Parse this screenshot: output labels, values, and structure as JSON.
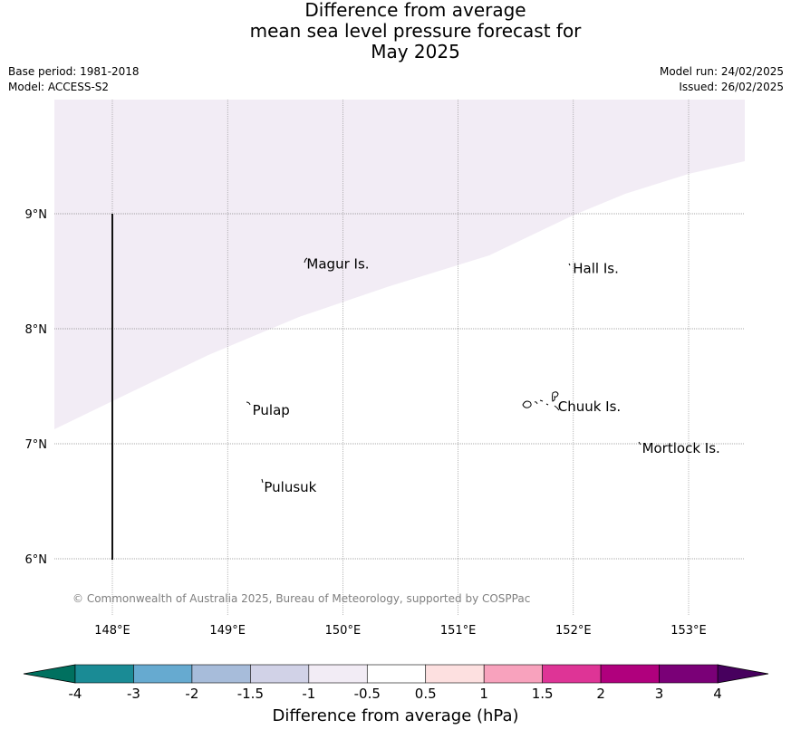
{
  "title": {
    "line1": "Difference from average",
    "line2": "mean sea level pressure forecast for",
    "line3": "May 2025"
  },
  "info": {
    "base_period": "Base period: 1981-2018",
    "model": "Model: ACCESS-S2",
    "model_run": "Model run: 24/02/2025",
    "issued": "Issued: 26/02/2025"
  },
  "map": {
    "lon_range": [
      147.5,
      153.5
    ],
    "lat_range": [
      5.5,
      10.0
    ],
    "lon_ticks": [
      "148°E",
      "149°E",
      "150°E",
      "151°E",
      "152°E",
      "153°E"
    ],
    "lat_ticks": [
      "6°N",
      "7°N",
      "8°N",
      "9°N"
    ],
    "shaded_band": "-1 to -0.5",
    "shaded_color": "#f2ecf5",
    "places": [
      {
        "name": "Magur Is.",
        "lon": 149.67,
        "lat": 8.57
      },
      {
        "name": "Hall Is.",
        "lon": 151.98,
        "lat": 8.53
      },
      {
        "name": "Pulap",
        "lon": 149.2,
        "lat": 7.3
      },
      {
        "name": "Chuuk Is.",
        "lon": 151.85,
        "lat": 7.33
      },
      {
        "name": "Mortlock Is.",
        "lon": 152.58,
        "lat": 6.97
      },
      {
        "name": "Pulusuk",
        "lon": 149.3,
        "lat": 6.63
      }
    ],
    "copyright": "© Commonwealth of Australia 2025, Bureau of Meteorology, supported by COSPPac"
  },
  "colorbar": {
    "label": "Difference from average (hPa)",
    "ticks": [
      "-4",
      "-3",
      "-2",
      "-1.5",
      "-1",
      "-0.5",
      "0.5",
      "1",
      "1.5",
      "2",
      "3",
      "4"
    ],
    "colors": [
      "#1a8b95",
      "#66aad0",
      "#a7bcda",
      "#d1d2e7",
      "#f2ecf5",
      "#ffffff",
      "#fde0e0",
      "#f8a2bd",
      "#de3496",
      "#b0007d",
      "#7a0077"
    ],
    "under_color": "#00705f",
    "over_color": "#47005e"
  }
}
